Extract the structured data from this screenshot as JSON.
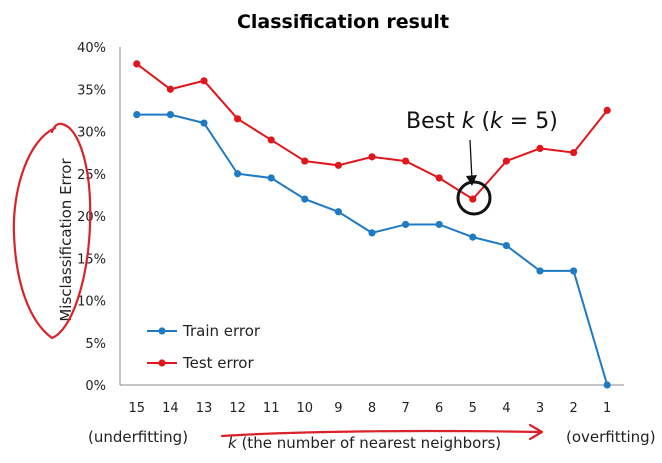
{
  "chart_data": {
    "type": "line",
    "title": "Classification result",
    "ylabel": "Misclassification Error",
    "xlabel_prefix": "k",
    "xlabel_rest": " (the number of nearest neighbors)",
    "left_note": "(underfitting)",
    "right_note": "(overfitting)",
    "categories": [
      "15",
      "14",
      "13",
      "12",
      "11",
      "10",
      "9",
      "8",
      "7",
      "6",
      "5",
      "4",
      "3",
      "2",
      "1"
    ],
    "y_ticks": [
      "0%",
      "5%",
      "10%",
      "15%",
      "20%",
      "25%",
      "30%",
      "35%",
      "40%"
    ],
    "ylim": [
      0,
      40
    ],
    "grid": false,
    "legend_position": "bottom-left",
    "series": [
      {
        "name": "Train error",
        "color": "#1f7ac4",
        "values": [
          32,
          32,
          31,
          25,
          24.5,
          22,
          20.5,
          18,
          19,
          19,
          17.5,
          16.5,
          13.5,
          13.5,
          0
        ]
      },
      {
        "name": "Test error",
        "color": "#e0161c",
        "values": [
          38,
          35,
          36,
          31.5,
          29,
          26.5,
          26,
          27,
          26.5,
          24.5,
          22,
          26.5,
          28,
          27.5,
          32.5
        ]
      }
    ],
    "annotation": {
      "text_a": "Best ",
      "text_k": "k",
      "text_b": " (",
      "text_k2": "k",
      "text_c": " = 5)",
      "category": "5",
      "series": "Test error"
    },
    "handwriting_color": "#d9232b"
  }
}
